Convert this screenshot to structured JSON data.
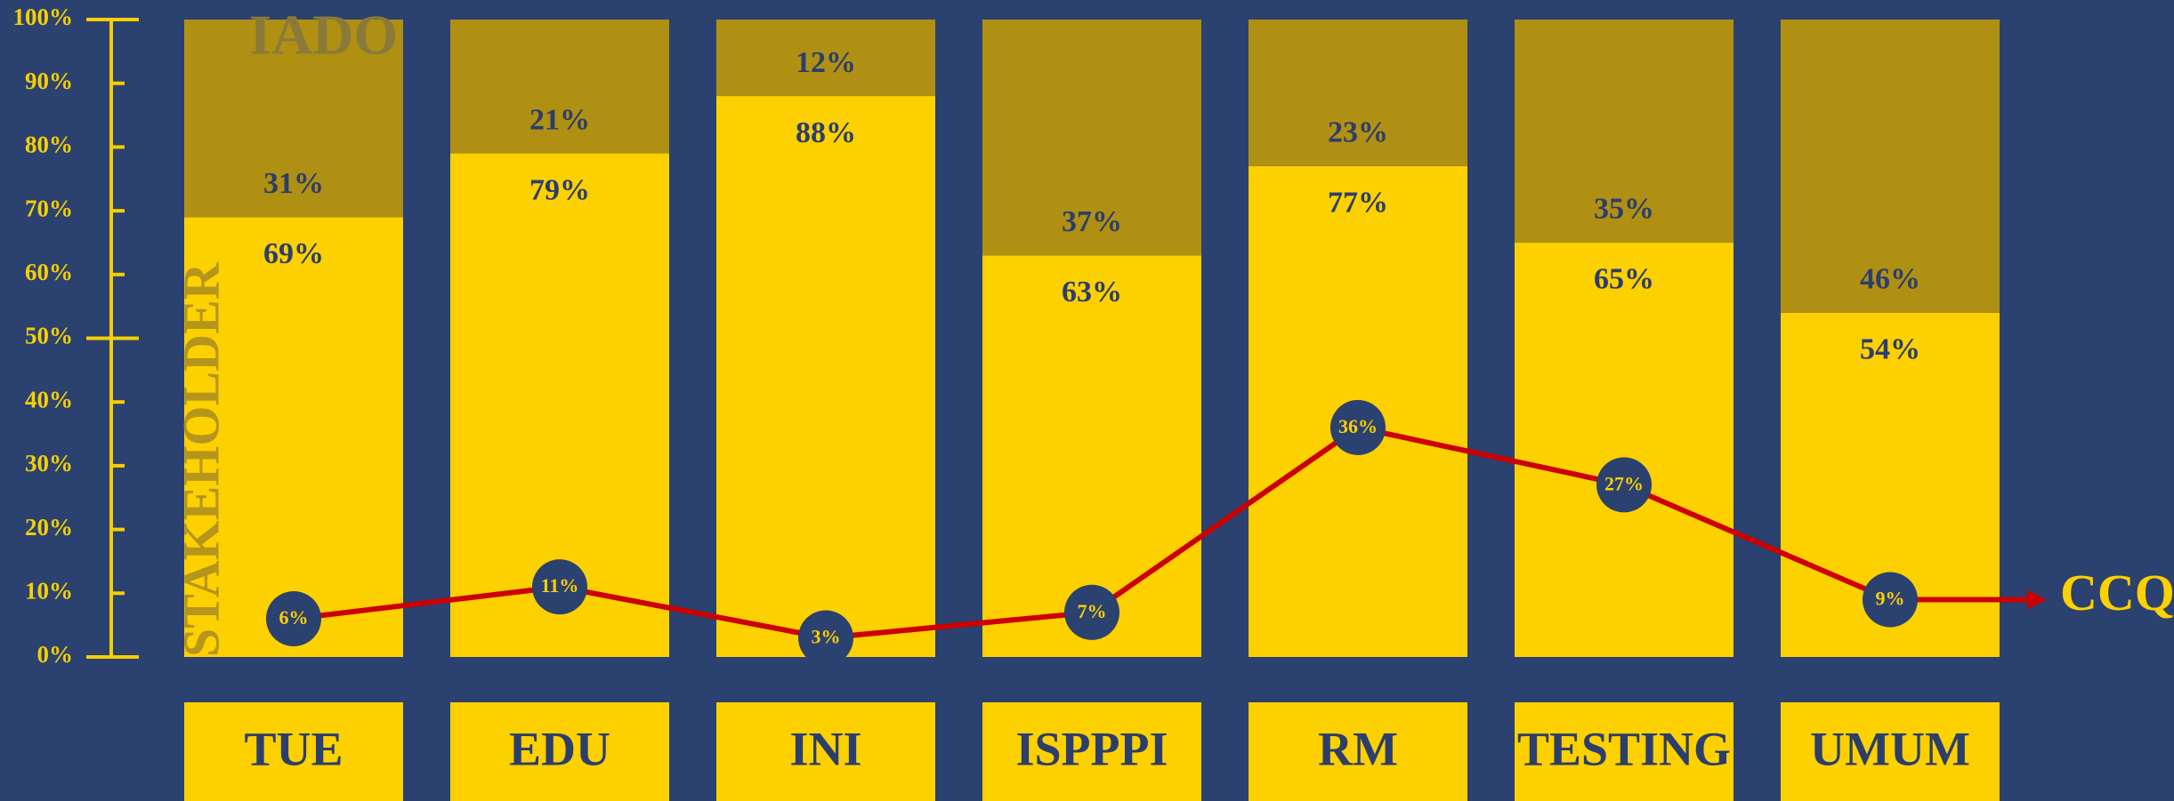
{
  "chart_data": {
    "type": "bar",
    "stacked": true,
    "categories": [
      "TUE",
      "EDU",
      "INI",
      "ISPPPI",
      "RM",
      "TESTING",
      "UMUM"
    ],
    "series": [
      {
        "name": "STAKEHOLDER",
        "color": "#fdd000",
        "values": [
          69,
          79,
          88,
          63,
          77,
          65,
          54
        ],
        "value_labels": [
          "69%",
          "79%",
          "88%",
          "63%",
          "77%",
          "65%",
          "54%"
        ]
      },
      {
        "name": "IADO",
        "color": "#b09012",
        "values": [
          31,
          21,
          12,
          37,
          23,
          35,
          46
        ],
        "value_labels": [
          "31%",
          "21%",
          "12%",
          "37%",
          "23%",
          "35%",
          "46%"
        ]
      },
      {
        "name": "CCQ",
        "type": "line",
        "color": "#cc0000",
        "values": [
          6,
          11,
          3,
          7,
          36,
          27,
          9
        ],
        "value_labels": [
          "6%",
          "11%",
          "3%",
          "7%",
          "36%",
          "27%",
          "9%"
        ]
      }
    ],
    "ylim": [
      0,
      100
    ],
    "yticks": [
      {
        "value": 0,
        "label": "0%"
      },
      {
        "value": 10,
        "label": "10%"
      },
      {
        "value": 20,
        "label": "20%"
      },
      {
        "value": 30,
        "label": "30%"
      },
      {
        "value": 40,
        "label": "40%"
      },
      {
        "value": 50,
        "label": "50%"
      },
      {
        "value": 60,
        "label": "60%"
      },
      {
        "value": 70,
        "label": "70%"
      },
      {
        "value": 80,
        "label": "80%"
      },
      {
        "value": 90,
        "label": "90%"
      },
      {
        "value": 100,
        "label": "100%"
      }
    ]
  }
}
